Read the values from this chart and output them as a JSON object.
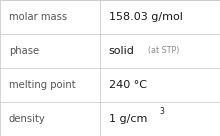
{
  "rows": [
    {
      "label": "molar mass",
      "value": "158.03 g/mol",
      "type": "normal"
    },
    {
      "label": "phase",
      "value": "solid",
      "type": "phase",
      "suffix": "(at STP)"
    },
    {
      "label": "melting point",
      "value": "240 °C",
      "type": "normal"
    },
    {
      "label": "density",
      "value": "1 g/cm",
      "type": "density",
      "super": "3"
    }
  ],
  "bg_color": "#f8f8f8",
  "cell_bg": "#ffffff",
  "border_color": "#cccccc",
  "label_color": "#555555",
  "value_color": "#1a1a1a",
  "suffix_color": "#888888",
  "col_split": 0.455,
  "label_fontsize": 7.2,
  "value_fontsize": 8.0,
  "small_fontsize": 5.8,
  "super_fontsize": 5.5
}
